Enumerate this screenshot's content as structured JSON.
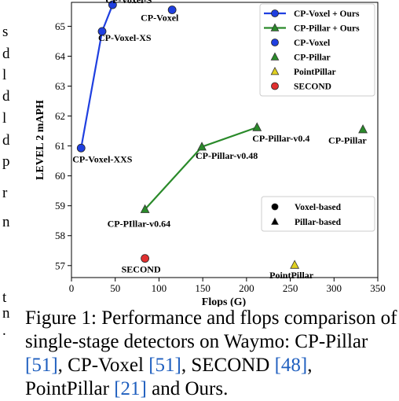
{
  "left_fragments": [
    "s",
    "d",
    "l",
    "d",
    "l",
    "d",
    "p",
    "r",
    "n",
    "t",
    "n",
    "."
  ],
  "chart_data": {
    "type": "scatter",
    "xlabel": "Flops (G)",
    "ylabel": "LEVEL 2 mAPH",
    "xlim": [
      0,
      350
    ],
    "ylim": [
      56.6,
      65.8
    ],
    "xticks": [
      0,
      50,
      100,
      150,
      200,
      250,
      300,
      350
    ],
    "yticks": [
      57,
      58,
      59,
      60,
      61,
      62,
      63,
      64,
      65
    ],
    "series": [
      {
        "name": "CP-Voxel + Ours",
        "kind": "line",
        "marker": "circle",
        "color": "#1f3fe0",
        "points": [
          {
            "x": 11,
            "y": 60.93,
            "label": "CP-Voxel-XXS"
          },
          {
            "x": 35,
            "y": 64.83,
            "label": "CP-Voxel-XS"
          },
          {
            "x": 47,
            "y": 65.72,
            "label": "CP-Voxel-S"
          }
        ]
      },
      {
        "name": "CP-Pillar + Ours",
        "kind": "line",
        "marker": "triangle",
        "color": "#2a8a2a",
        "points": [
          {
            "x": 84,
            "y": 58.88,
            "label": "CP-PIllar-v0.64"
          },
          {
            "x": 149,
            "y": 60.97,
            "label": "CP-Pillar-v0.48"
          },
          {
            "x": 212,
            "y": 61.62,
            "label": "CP-Pillar-v0.4"
          }
        ]
      },
      {
        "name": "CP-Voxel",
        "kind": "point",
        "marker": "circle",
        "color": "#1f3fe0",
        "points": [
          {
            "x": 115,
            "y": 65.55,
            "label": "CP-Voxel"
          }
        ]
      },
      {
        "name": "CP-Pillar",
        "kind": "point",
        "marker": "triangle",
        "color": "#2a8a2a",
        "points": [
          {
            "x": 333,
            "y": 61.55,
            "label": "CP-Pillar"
          }
        ]
      },
      {
        "name": "PointPillar",
        "kind": "point",
        "marker": "triangle",
        "color": "#e0d020",
        "points": [
          {
            "x": 255,
            "y": 57.02,
            "label": "PointPillar"
          }
        ]
      },
      {
        "name": "SECOND",
        "kind": "point",
        "marker": "circle",
        "color": "#e03030",
        "points": [
          {
            "x": 84,
            "y": 57.24,
            "label": "SECOND"
          }
        ]
      }
    ],
    "legend_placement": "top-right",
    "shape_legend": {
      "placement": "lower-right",
      "entries": [
        {
          "marker": "circle",
          "label": "Voxel-based"
        },
        {
          "marker": "triangle",
          "label": "Pillar-based"
        }
      ]
    }
  },
  "caption": {
    "text_1": "Figure 1:  Performance and flops comparison of single-stage detectors on Waymo: CP-Pillar ",
    "ref_1": "[51]",
    "text_2": ", CP-Voxel ",
    "ref_2": "[51]",
    "text_3": ", SECOND ",
    "ref_3": "[48]",
    "text_4": ", PointPillar ",
    "ref_4": "[21]",
    "text_5": " and Ours."
  }
}
